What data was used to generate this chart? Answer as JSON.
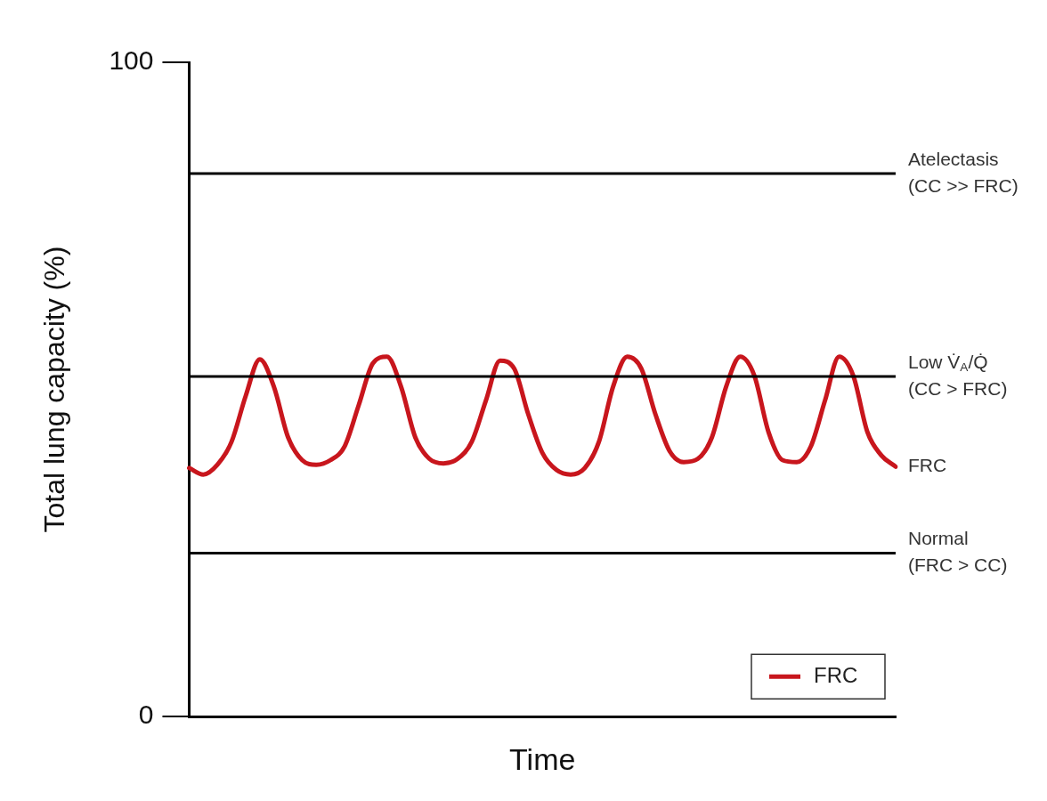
{
  "chart_data": {
    "type": "line",
    "xlabel": "Time",
    "ylabel": "Total lung capacity (%)",
    "categories": [
      null,
      null,
      null,
      null,
      null,
      null,
      null,
      null,
      null,
      null,
      null,
      null,
      null,
      null,
      null,
      null,
      null,
      null,
      null,
      null,
      null,
      null,
      null,
      null,
      null,
      null,
      null,
      null,
      null,
      null,
      null,
      null,
      null,
      null,
      null,
      null,
      null,
      null,
      null,
      null,
      null,
      null,
      null,
      null,
      null,
      null,
      null,
      null,
      null,
      null,
      null
    ],
    "series": [
      {
        "name": "FRC",
        "color": "#c8161d",
        "values": [
          38,
          37,
          38.5,
          42,
          49,
          54.6,
          50.4,
          42.7,
          39.2,
          38.5,
          39.2,
          41.3,
          47.6,
          54,
          55,
          50.4,
          42.7,
          39.4,
          38.7,
          39.4,
          42,
          48.3,
          54.4,
          53.2,
          46.2,
          40.3,
          37.7,
          37,
          38,
          42,
          50.4,
          55,
          53.2,
          46.2,
          40.6,
          38.9,
          39.4,
          42.7,
          50.4,
          55,
          52.1,
          43.5,
          39.2,
          38.9,
          41.3,
          48.3,
          55,
          52.1,
          43.5,
          39.9,
          38.2
        ]
      }
    ],
    "ylim": [
      0,
      100
    ],
    "yticks": [
      0,
      100
    ],
    "tick_labels": "y",
    "grid": false,
    "legend": "bottom right",
    "marker": "none",
    "line_style": "solid",
    "ref_lines": [
      {
        "axis": "y",
        "value": 83,
        "label": "Atelectasis\n(CC >> FRC)",
        "color": "#000000"
      },
      {
        "axis": "y",
        "value": 52,
        "label": "Low V̇$_{A}$/Q̇\n(CC > FRC)",
        "color": "#000000"
      },
      {
        "axis": "y",
        "value": 25,
        "label": "Normal\n(FRC > CC)",
        "color": "#000000"
      }
    ],
    "annotations": [
      "FRC"
    ]
  }
}
